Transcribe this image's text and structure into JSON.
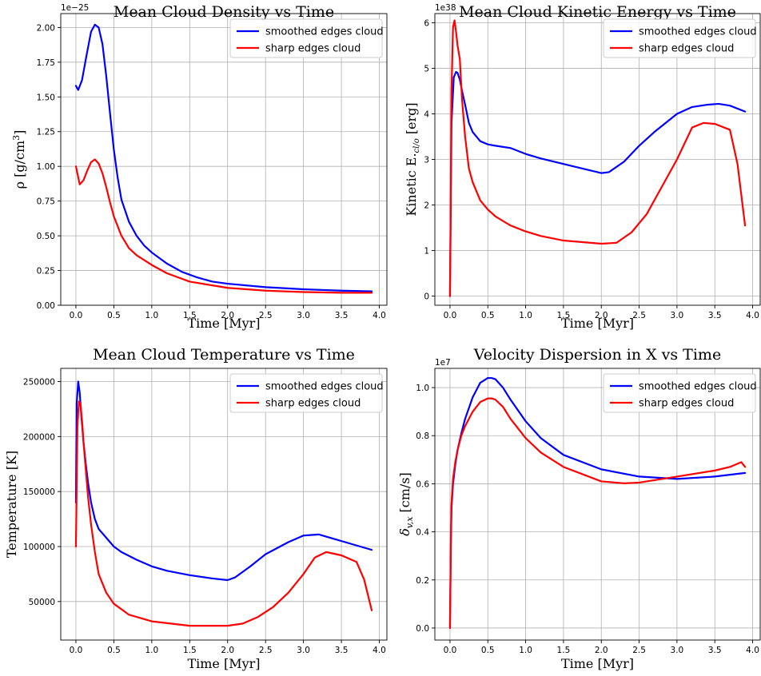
{
  "colors": {
    "smoothed": "#0000ff",
    "sharp": "#ff0000"
  },
  "chart_data": [
    {
      "type": "line",
      "title": "Mean Cloud Density vs Time",
      "xlabel": "Time [Myr]",
      "ylabel": "ρ [g/cm³]",
      "y_offset_text": "1e−25",
      "xlim": [
        -0.2,
        4.1
      ],
      "ylim": [
        0,
        2.1
      ],
      "xticks": [
        0.0,
        0.5,
        1.0,
        1.5,
        2.0,
        2.5,
        3.0,
        3.5,
        4.0
      ],
      "xtick_labels": [
        "0.0",
        "0.5",
        "1.0",
        "1.5",
        "2.0",
        "2.5",
        "3.0",
        "3.5",
        "4.0"
      ],
      "yticks": [
        0,
        0.25,
        0.5,
        0.75,
        1.0,
        1.25,
        1.5,
        1.75,
        2.0
      ],
      "ytick_labels": [
        "0.00",
        "0.25",
        "0.50",
        "0.75",
        "1.00",
        "1.25",
        "1.50",
        "1.75",
        "2.00"
      ],
      "grid": true,
      "legend_position": "top-right",
      "series": [
        {
          "name": "smoothed edges cloud",
          "color_key": "smoothed",
          "x": [
            0,
            0.03,
            0.08,
            0.14,
            0.2,
            0.25,
            0.3,
            0.35,
            0.4,
            0.45,
            0.5,
            0.55,
            0.6,
            0.7,
            0.8,
            0.9,
            1.0,
            1.2,
            1.4,
            1.6,
            1.8,
            2.0,
            2.5,
            3.0,
            3.5,
            3.9
          ],
          "y": [
            1.58,
            1.55,
            1.62,
            1.8,
            1.97,
            2.02,
            2.0,
            1.88,
            1.65,
            1.38,
            1.12,
            0.92,
            0.76,
            0.6,
            0.5,
            0.43,
            0.38,
            0.3,
            0.24,
            0.2,
            0.17,
            0.155,
            0.13,
            0.115,
            0.105,
            0.1
          ]
        },
        {
          "name": "sharp edges cloud",
          "color_key": "sharp",
          "x": [
            0,
            0.05,
            0.1,
            0.15,
            0.2,
            0.25,
            0.3,
            0.35,
            0.4,
            0.45,
            0.5,
            0.6,
            0.7,
            0.8,
            1.0,
            1.2,
            1.5,
            2.0,
            2.5,
            3.0,
            3.5,
            3.9
          ],
          "y": [
            1.0,
            0.87,
            0.9,
            0.97,
            1.03,
            1.05,
            1.02,
            0.95,
            0.85,
            0.74,
            0.64,
            0.5,
            0.41,
            0.36,
            0.29,
            0.23,
            0.17,
            0.125,
            0.105,
            0.095,
            0.09,
            0.09
          ]
        }
      ]
    },
    {
      "type": "line",
      "title": "Mean Cloud Kinetic Energy vs Time",
      "xlabel": "Time [Myr]",
      "ylabel": "Kinetic E.cl/o [erg]",
      "y_offset_text": "1e38",
      "xlim": [
        -0.2,
        4.1
      ],
      "ylim": [
        -0.2,
        6.2
      ],
      "xticks": [
        0.0,
        0.5,
        1.0,
        1.5,
        2.0,
        2.5,
        3.0,
        3.5,
        4.0
      ],
      "xtick_labels": [
        "0.0",
        "0.5",
        "1.0",
        "1.5",
        "2.0",
        "2.5",
        "3.0",
        "3.5",
        "4.0"
      ],
      "yticks": [
        0,
        1,
        2,
        3,
        4,
        5,
        6
      ],
      "ytick_labels": [
        "0",
        "1",
        "2",
        "3",
        "4",
        "5",
        "6"
      ],
      "grid": true,
      "legend_position": "top-right",
      "series": [
        {
          "name": "smoothed edges cloud",
          "color_key": "smoothed",
          "x": [
            0,
            0.02,
            0.05,
            0.08,
            0.1,
            0.13,
            0.16,
            0.2,
            0.25,
            0.3,
            0.4,
            0.5,
            0.6,
            0.8,
            1.0,
            1.2,
            1.5,
            1.8,
            2.0,
            2.1,
            2.3,
            2.5,
            2.7,
            3.0,
            3.2,
            3.4,
            3.55,
            3.7,
            3.9
          ],
          "y": [
            0,
            3.8,
            4.8,
            4.92,
            4.9,
            4.75,
            4.5,
            4.2,
            3.8,
            3.6,
            3.4,
            3.33,
            3.3,
            3.25,
            3.12,
            3.02,
            2.9,
            2.78,
            2.7,
            2.72,
            2.95,
            3.3,
            3.6,
            4.0,
            4.15,
            4.2,
            4.22,
            4.18,
            4.05
          ]
        },
        {
          "name": "sharp edges cloud",
          "color_key": "sharp",
          "x": [
            0,
            0.02,
            0.04,
            0.06,
            0.08,
            0.1,
            0.13,
            0.16,
            0.2,
            0.25,
            0.3,
            0.4,
            0.5,
            0.6,
            0.8,
            1.0,
            1.2,
            1.5,
            2.0,
            2.2,
            2.4,
            2.6,
            2.8,
            3.0,
            3.2,
            3.35,
            3.5,
            3.7,
            3.8,
            3.9
          ],
          "y": [
            0,
            4.5,
            5.9,
            6.05,
            5.8,
            5.5,
            5.2,
            4.3,
            3.5,
            2.8,
            2.5,
            2.1,
            1.9,
            1.75,
            1.55,
            1.42,
            1.32,
            1.22,
            1.15,
            1.17,
            1.4,
            1.8,
            2.4,
            3.0,
            3.7,
            3.8,
            3.78,
            3.65,
            2.9,
            1.55
          ]
        }
      ]
    },
    {
      "type": "line",
      "title": "Mean Cloud Temperature vs Time",
      "xlabel": "Time [Myr]",
      "ylabel": "Temperature [K]",
      "y_offset_text": "",
      "xlim": [
        -0.2,
        4.1
      ],
      "ylim": [
        15000,
        262000
      ],
      "xticks": [
        0.0,
        0.5,
        1.0,
        1.5,
        2.0,
        2.5,
        3.0,
        3.5,
        4.0
      ],
      "xtick_labels": [
        "0.0",
        "0.5",
        "1.0",
        "1.5",
        "2.0",
        "2.5",
        "3.0",
        "3.5",
        "4.0"
      ],
      "yticks": [
        50000,
        100000,
        150000,
        200000,
        250000
      ],
      "ytick_labels": [
        "50000",
        "100000",
        "150000",
        "200000",
        "250000"
      ],
      "grid": true,
      "legend_position": "top-right",
      "series": [
        {
          "name": "smoothed edges cloud",
          "color_key": "smoothed",
          "x": [
            0,
            0.01,
            0.03,
            0.05,
            0.07,
            0.1,
            0.13,
            0.16,
            0.2,
            0.25,
            0.3,
            0.4,
            0.5,
            0.6,
            0.8,
            1.0,
            1.2,
            1.5,
            1.8,
            2.0,
            2.1,
            2.3,
            2.5,
            2.8,
            3.0,
            3.2,
            3.4,
            3.6,
            3.8,
            3.9
          ],
          "y": [
            140000,
            230000,
            250000,
            240000,
            220000,
            195000,
            175000,
            158000,
            140000,
            125000,
            116000,
            108000,
            100000,
            95000,
            88000,
            82000,
            78000,
            74000,
            71000,
            69500,
            72000,
            82000,
            93000,
            104000,
            110000,
            111000,
            107000,
            103000,
            99000,
            97000
          ]
        },
        {
          "name": "sharp edges cloud",
          "color_key": "sharp",
          "x": [
            0,
            0.02,
            0.04,
            0.06,
            0.08,
            0.1,
            0.13,
            0.16,
            0.2,
            0.25,
            0.3,
            0.4,
            0.5,
            0.7,
            1.0,
            1.5,
            2.0,
            2.2,
            2.4,
            2.6,
            2.8,
            3.0,
            3.15,
            3.3,
            3.5,
            3.7,
            3.8,
            3.9
          ],
          "y": [
            100000,
            210000,
            232000,
            230000,
            215000,
            195000,
            170000,
            145000,
            120000,
            95000,
            75000,
            58000,
            48000,
            38000,
            32000,
            28000,
            28000,
            30000,
            36000,
            45000,
            58000,
            75000,
            90000,
            95000,
            92000,
            86000,
            70000,
            42000
          ]
        }
      ]
    },
    {
      "type": "line",
      "title": "Velocity Dispersion in X vs Time",
      "xlabel": "Time [Myr]",
      "ylabel": "δv,x [cm/s]",
      "y_offset_text": "1e7",
      "xlim": [
        -0.2,
        4.1
      ],
      "ylim": [
        -0.05,
        1.08
      ],
      "xticks": [
        0.0,
        0.5,
        1.0,
        1.5,
        2.0,
        2.5,
        3.0,
        3.5,
        4.0
      ],
      "xtick_labels": [
        "0.0",
        "0.5",
        "1.0",
        "1.5",
        "2.0",
        "2.5",
        "3.0",
        "3.5",
        "4.0"
      ],
      "yticks": [
        0.0,
        0.2,
        0.4,
        0.6,
        0.8,
        1.0
      ],
      "ytick_labels": [
        "0.0",
        "0.2",
        "0.4",
        "0.6",
        "0.8",
        "1.0"
      ],
      "grid": true,
      "legend_position": "top-right",
      "series": [
        {
          "name": "smoothed edges cloud",
          "color_key": "smoothed",
          "x": [
            0,
            0.01,
            0.02,
            0.04,
            0.07,
            0.1,
            0.15,
            0.2,
            0.3,
            0.4,
            0.5,
            0.55,
            0.6,
            0.7,
            0.8,
            1.0,
            1.2,
            1.5,
            2.0,
            2.5,
            3.0,
            3.5,
            3.9
          ],
          "y": [
            0,
            0.3,
            0.5,
            0.6,
            0.68,
            0.74,
            0.81,
            0.87,
            0.96,
            1.02,
            1.04,
            1.04,
            1.035,
            1.0,
            0.95,
            0.86,
            0.79,
            0.72,
            0.66,
            0.63,
            0.62,
            0.63,
            0.645
          ]
        },
        {
          "name": "sharp edges cloud",
          "color_key": "sharp",
          "x": [
            0,
            0.01,
            0.02,
            0.04,
            0.07,
            0.1,
            0.15,
            0.2,
            0.3,
            0.4,
            0.5,
            0.55,
            0.6,
            0.7,
            0.8,
            1.0,
            1.2,
            1.5,
            2.0,
            2.3,
            2.5,
            3.0,
            3.5,
            3.7,
            3.85,
            3.9
          ],
          "y": [
            0,
            0.35,
            0.52,
            0.62,
            0.69,
            0.74,
            0.8,
            0.84,
            0.9,
            0.94,
            0.955,
            0.955,
            0.95,
            0.92,
            0.87,
            0.79,
            0.73,
            0.67,
            0.61,
            0.602,
            0.605,
            0.63,
            0.655,
            0.67,
            0.69,
            0.67
          ]
        }
      ]
    }
  ]
}
